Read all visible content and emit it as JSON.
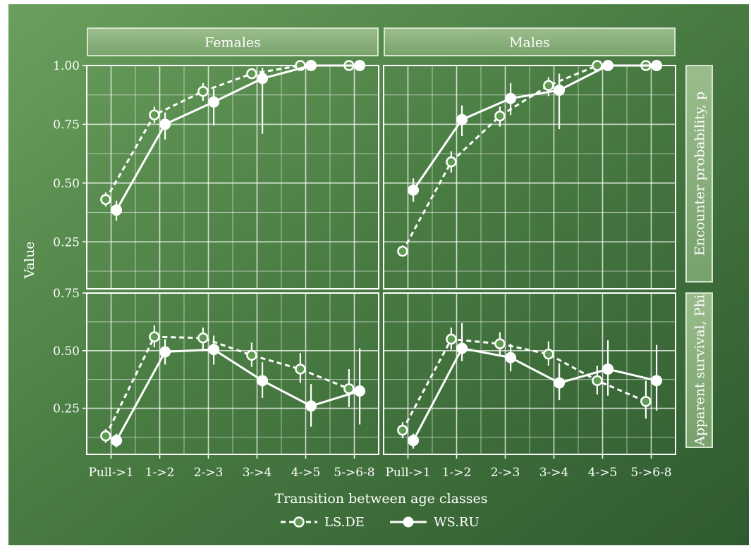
{
  "chart_data": {
    "type": "line",
    "xlabel": "Transition between age classes",
    "ylabel": "Value",
    "categories": [
      "Pull->1",
      "1->2",
      "2->3",
      "3->4",
      "4->5",
      "5->6-8"
    ],
    "columns": [
      "Females",
      "Males"
    ],
    "rows": [
      {
        "label": "Encounter probability, p",
        "ylim": [
          0.05,
          1.0
        ],
        "yticks": [
          1.0,
          0.75,
          0.5,
          0.25
        ],
        "yticklabels": [
          "1.00",
          "0.75",
          "0.50",
          "0.25"
        ]
      },
      {
        "label": "Apparent survival, Phi",
        "ylim": [
          0.05,
          0.75
        ],
        "yticks": [
          0.75,
          0.5,
          0.25
        ],
        "yticklabels": [
          "0.75",
          "0.50",
          "0.25"
        ]
      }
    ],
    "legend": {
      "position": "bottom",
      "entries": [
        "LS.DE",
        "WS.RU"
      ]
    },
    "panels": [
      {
        "row": 0,
        "col": 0,
        "series": [
          {
            "name": "LS.DE",
            "style": "dashed",
            "values": [
              0.43,
              0.79,
              0.89,
              0.965,
              1.0,
              1.0
            ],
            "lower": [
              0.4,
              0.755,
              0.85,
              0.945,
              1.0,
              1.0
            ],
            "upper": [
              0.46,
              0.825,
              0.925,
              0.985,
              1.0,
              1.0
            ]
          },
          {
            "name": "WS.RU",
            "style": "solid",
            "values": [
              0.385,
              0.75,
              0.845,
              0.945,
              1.0,
              1.0
            ],
            "lower": [
              0.34,
              0.685,
              0.745,
              0.71,
              1.0,
              1.0
            ],
            "upper": [
              0.425,
              0.8,
              0.9,
              0.99,
              1.0,
              1.0
            ]
          }
        ]
      },
      {
        "row": 0,
        "col": 1,
        "series": [
          {
            "name": "LS.DE",
            "style": "dashed",
            "values": [
              0.21,
              0.59,
              0.785,
              0.915,
              1.0,
              1.0
            ],
            "lower": [
              0.19,
              0.545,
              0.74,
              0.87,
              1.0,
              1.0
            ],
            "upper": [
              0.235,
              0.635,
              0.825,
              0.95,
              1.0,
              1.0
            ]
          },
          {
            "name": "WS.RU",
            "style": "solid",
            "values": [
              0.47,
              0.77,
              0.86,
              0.895,
              1.0,
              1.0
            ],
            "lower": [
              0.42,
              0.7,
              0.79,
              0.73,
              1.0,
              1.0
            ],
            "upper": [
              0.52,
              0.83,
              0.925,
              0.965,
              1.0,
              1.0
            ]
          }
        ]
      },
      {
        "row": 1,
        "col": 0,
        "series": [
          {
            "name": "LS.DE",
            "style": "dashed",
            "values": [
              0.13,
              0.56,
              0.555,
              0.48,
              0.42,
              0.335
            ],
            "lower": [
              0.1,
              0.515,
              0.505,
              0.43,
              0.36,
              0.255
            ],
            "upper": [
              0.16,
              0.61,
              0.6,
              0.535,
              0.49,
              0.42
            ]
          },
          {
            "name": "WS.RU",
            "style": "solid",
            "values": [
              0.11,
              0.495,
              0.505,
              0.37,
              0.26,
              0.325
            ],
            "lower": [
              0.08,
              0.44,
              0.44,
              0.295,
              0.17,
              0.18
            ],
            "upper": [
              0.14,
              0.55,
              0.565,
              0.45,
              0.355,
              0.51
            ]
          }
        ]
      },
      {
        "row": 1,
        "col": 1,
        "series": [
          {
            "name": "LS.DE",
            "style": "dashed",
            "values": [
              0.155,
              0.55,
              0.53,
              0.485,
              0.37,
              0.28
            ],
            "lower": [
              0.12,
              0.505,
              0.48,
              0.435,
              0.31,
              0.205
            ],
            "upper": [
              0.19,
              0.6,
              0.58,
              0.54,
              0.435,
              0.37
            ]
          },
          {
            "name": "WS.RU",
            "style": "solid",
            "values": [
              0.11,
              0.51,
              0.47,
              0.36,
              0.42,
              0.37
            ],
            "lower": [
              0.075,
              0.455,
              0.41,
              0.285,
              0.305,
              0.24
            ],
            "upper": [
              0.14,
              0.62,
              0.53,
              0.445,
              0.545,
              0.525
            ]
          }
        ]
      }
    ]
  }
}
